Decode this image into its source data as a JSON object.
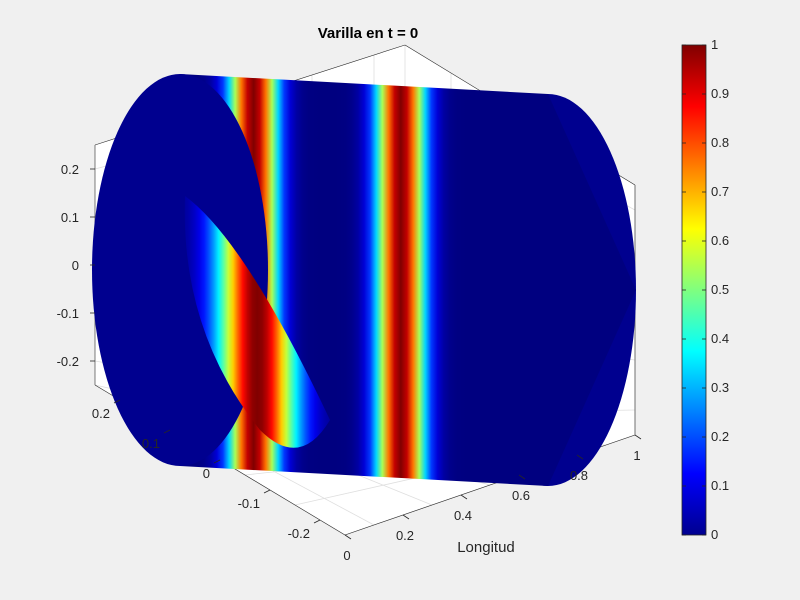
{
  "chart_data": {
    "type": "surface",
    "title": "Varilla en t = 0",
    "xlabel": "Longitud",
    "ylabel": "",
    "zlabel": "",
    "xlim": [
      0,
      1
    ],
    "ylim": [
      -0.25,
      0.25
    ],
    "zlim": [
      -0.25,
      0.25
    ],
    "x_ticks": [
      "0",
      "0.2",
      "0.4",
      "0.6",
      "0.8",
      "1"
    ],
    "y_ticks": [
      "-0.2",
      "-0.1",
      "0",
      "0.1",
      "0.2"
    ],
    "z_ticks": [
      "-0.2",
      "-0.1",
      "0",
      "0.1",
      "0.2"
    ],
    "surface": {
      "shape": "cylinder",
      "radius": 0.25,
      "x_range": [
        0,
        1
      ],
      "value_peaks": [
        {
          "x": 0.2,
          "value": 1,
          "width": 0.045
        },
        {
          "x": 0.6,
          "value": 1,
          "width": 0.045
        }
      ],
      "colormap": "jet"
    },
    "colorbar": {
      "limits": [
        0,
        1
      ],
      "ticks": [
        "0",
        "0.1",
        "0.2",
        "0.3",
        "0.4",
        "0.5",
        "0.6",
        "0.7",
        "0.8",
        "0.9",
        "1"
      ],
      "colormap": "jet"
    },
    "grid": true,
    "box": true
  }
}
